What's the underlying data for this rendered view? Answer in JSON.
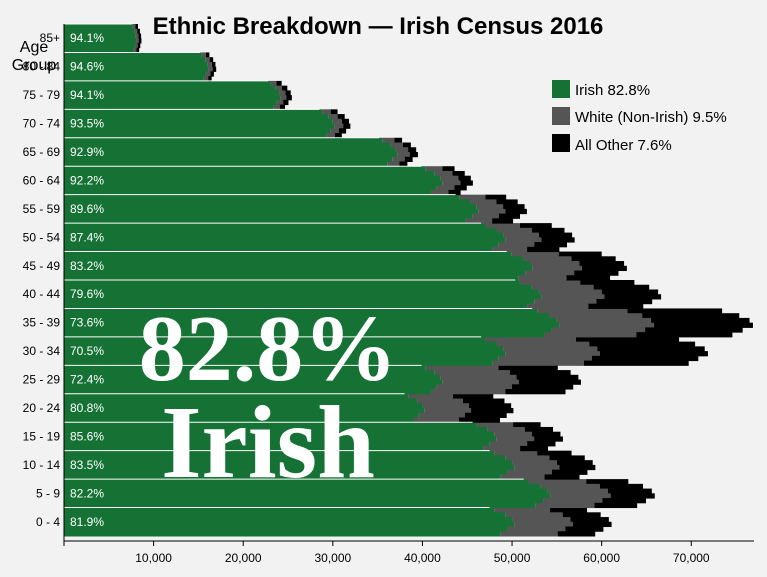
{
  "chart_data": {
    "type": "bar",
    "orientation": "horizontal",
    "stacked": true,
    "title": "Ethnic Breakdown — Irish Census 2016",
    "ylabel": "Age Group",
    "xlabel": "",
    "xlim": [
      0,
      77000
    ],
    "x_ticks": [
      10000,
      20000,
      30000,
      40000,
      50000,
      60000,
      70000
    ],
    "x_tick_labels": [
      "10,000",
      "20,000",
      "30,000",
      "40,000",
      "50,000",
      "60,000",
      "70,000"
    ],
    "categories": [
      "0 - 4",
      "5 - 9",
      "10 - 14",
      "15 - 19",
      "20 - 24",
      "25 - 29",
      "30 - 34",
      "35 - 39",
      "40 - 44",
      "45 - 49",
      "50 - 54",
      "55 - 59",
      "60 - 64",
      "65 - 69",
      "70 - 74",
      "75 - 79",
      "80 - 84",
      "85+"
    ],
    "irish_share_labels": [
      "81.9%",
      "82.2%",
      "83.5%",
      "85.6%",
      "80.8%",
      "72.4%",
      "70.5%",
      "73.6%",
      "79.6%",
      "83.2%",
      "87.4%",
      "89.6%",
      "92.2%",
      "92.9%",
      "93.5%",
      "94.1%",
      "94.6%",
      "94.1%"
    ],
    "series": [
      {
        "name": "Irish",
        "color": "#157234",
        "values": [
          50000,
          54000,
          50000,
          48000,
          40000,
          42000,
          49000,
          55000,
          53000,
          52000,
          49000,
          46000,
          42000,
          37000,
          30000,
          24000,
          16000,
          8000
        ]
      },
      {
        "name": "White (Non-Irish)",
        "color": "#555555",
        "values": [
          6500,
          6700,
          5000,
          4200,
          5200,
          8500,
          10500,
          10500,
          7000,
          5500,
          4000,
          3000,
          2000,
          1400,
          1000,
          700,
          500,
          300
        ]
      },
      {
        "name": "All Other",
        "color": "#000000",
        "values": [
          4300,
          4900,
          4000,
          3200,
          4700,
          6900,
          12000,
          11000,
          6300,
          5000,
          3700,
          2400,
          1400,
          900,
          800,
          600,
          400,
          300
        ]
      }
    ],
    "profile_shape": [
      0.96,
      0.985,
      1.0,
      1.005,
      0.99,
      0.975
    ],
    "legend": {
      "position": "top-right",
      "entries": [
        {
          "label": "Irish 82.8%",
          "color": "#157234"
        },
        {
          "label": "White (Non-Irish) 9.5%",
          "color": "#555555"
        },
        {
          "label": "All Other 7.6%",
          "color": "#000000"
        }
      ]
    },
    "annotation": {
      "line1": "82.8%",
      "line2": "Irish"
    },
    "grid": false
  }
}
